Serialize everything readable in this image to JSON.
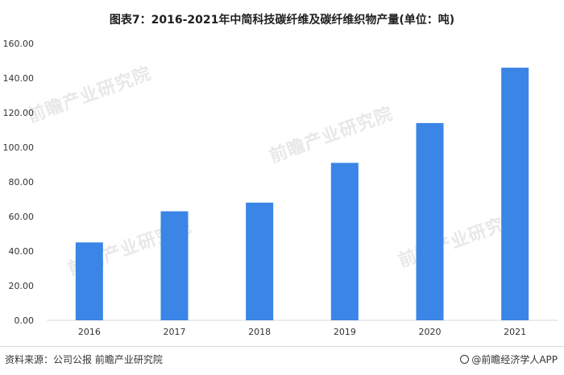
{
  "title": "图表7：2016-2021年中简科技碳纤维及碳纤维织物产量(单位：吨)",
  "watermark_text": "前瞻产业研究院",
  "footer": {
    "source": "资料来源：公司公报 前瞻产业研究院",
    "brand": "@前瞻经济学人APP"
  },
  "colors": {
    "bar": "#3a85e6",
    "axis": "#d9d9d9",
    "tick_label": "#333333"
  },
  "chart_data": {
    "type": "bar",
    "title": "图表7：2016-2021年中简科技碳纤维及碳纤维织物产量(单位：吨)",
    "categories": [
      "2016",
      "2017",
      "2018",
      "2019",
      "2020",
      "2021"
    ],
    "values": [
      45,
      63,
      68,
      91,
      114,
      146
    ],
    "ylim": [
      0,
      160
    ],
    "yticks": [
      "0.00",
      "20.00",
      "40.00",
      "60.00",
      "80.00",
      "100.00",
      "120.00",
      "140.00",
      "160.00"
    ],
    "grid": false,
    "legend": "none"
  }
}
